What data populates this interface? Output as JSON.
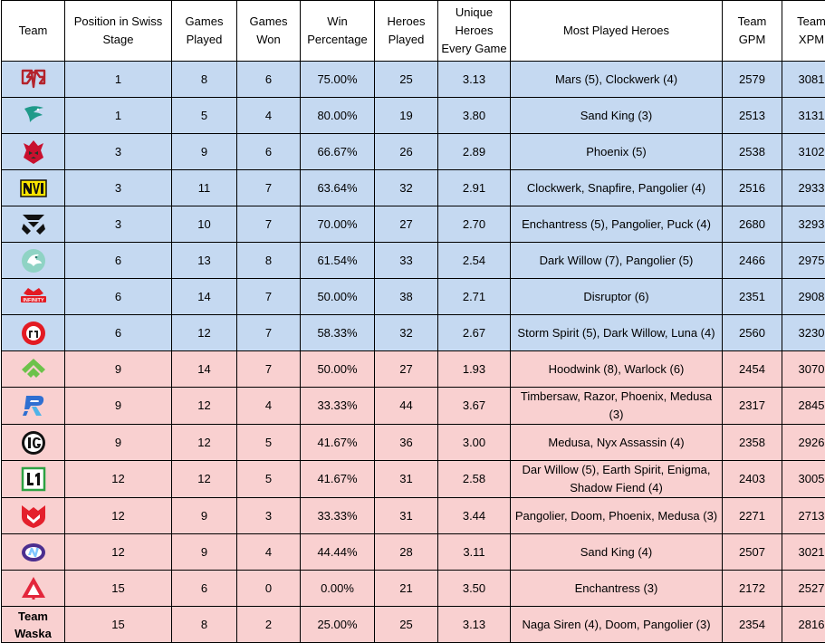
{
  "headers": {
    "team": "Team",
    "position": "Position in Swiss Stage",
    "games_played": "Games Played",
    "games_won": "Games Won",
    "win_pct": "Win Percentage",
    "heroes_played": "Heroes Played",
    "unique_heroes": "Unique Heroes Every Game",
    "most_played": "Most Played Heroes",
    "gpm": "Team GPM",
    "xpm": "Team XPM"
  },
  "rows": [
    {
      "logo_icon": "team-falcons-logo-icon",
      "team_text": "",
      "position": "1",
      "games_played": "8",
      "games_won": "6",
      "win_pct": "75.00%",
      "heroes_played": "25",
      "unique_heroes": "3.13",
      "most_played": "Mars (5), Clockwerk (4)",
      "gpm": "2579",
      "xpm": "3081"
    },
    {
      "logo_icon": "team-liquid-logo-icon",
      "team_text": "",
      "position": "1",
      "games_played": "5",
      "games_won": "4",
      "win_pct": "80.00%",
      "heroes_played": "19",
      "unique_heroes": "3.80",
      "most_played": "Sand King (3)",
      "gpm": "2513",
      "xpm": "3131"
    },
    {
      "logo_icon": "red-demon-logo-icon",
      "team_text": "",
      "position": "3",
      "games_played": "9",
      "games_won": "6",
      "win_pct": "66.67%",
      "heroes_played": "26",
      "unique_heroes": "2.89",
      "most_played": "Phoenix (5)",
      "gpm": "2538",
      "xpm": "3102"
    },
    {
      "logo_icon": "navi-logo-icon",
      "team_text": "",
      "position": "3",
      "games_played": "11",
      "games_won": "7",
      "win_pct": "63.64%",
      "heroes_played": "32",
      "unique_heroes": "2.91",
      "most_played": "Clockwerk, Snapfire, Pangolier (4)",
      "gpm": "2516",
      "xpm": "2933"
    },
    {
      "logo_icon": "tundra-logo-icon",
      "team_text": "",
      "position": "3",
      "games_played": "10",
      "games_won": "7",
      "win_pct": "70.00%",
      "heroes_played": "27",
      "unique_heroes": "2.70",
      "most_played": "Enchantress (5), Pangolier, Puck (4)",
      "gpm": "2680",
      "xpm": "3293"
    },
    {
      "logo_icon": "dragon-logo-icon",
      "team_text": "",
      "position": "6",
      "games_played": "13",
      "games_won": "8",
      "win_pct": "61.54%",
      "heroes_played": "33",
      "unique_heroes": "2.54",
      "most_played": "Dark Willow (7), Pangolier (5)",
      "gpm": "2466",
      "xpm": "2975"
    },
    {
      "logo_icon": "infinity-logo-icon",
      "team_text": "",
      "position": "6",
      "games_played": "14",
      "games_won": "7",
      "win_pct": "50.00%",
      "heroes_played": "38",
      "unique_heroes": "2.71",
      "most_played": "Disruptor (6)",
      "gpm": "2351",
      "xpm": "2908"
    },
    {
      "logo_icon": "red-circle-logo-icon",
      "team_text": "",
      "position": "6",
      "games_played": "12",
      "games_won": "7",
      "win_pct": "58.33%",
      "heroes_played": "32",
      "unique_heroes": "2.67",
      "most_played": "Storm Spirit (5), Dark Willow, Luna (4)",
      "gpm": "2560",
      "xpm": "3230"
    },
    {
      "logo_icon": "green-chevron-logo-icon",
      "team_text": "",
      "position": "9",
      "games_played": "14",
      "games_won": "7",
      "win_pct": "50.00%",
      "heroes_played": "27",
      "unique_heroes": "1.93",
      "most_played": "Hoodwink (8), Warlock (6)",
      "gpm": "2454",
      "xpm": "3070"
    },
    {
      "logo_icon": "blue-r-logo-icon",
      "team_text": "",
      "position": "9",
      "games_played": "12",
      "games_won": "4",
      "win_pct": "33.33%",
      "heroes_played": "44",
      "unique_heroes": "3.67",
      "most_played": "Timbersaw, Razor, Phoenix, Medusa (3)",
      "gpm": "2317",
      "xpm": "2845"
    },
    {
      "logo_icon": "ig-logo-icon",
      "team_text": "",
      "position": "9",
      "games_played": "12",
      "games_won": "5",
      "win_pct": "41.67%",
      "heroes_played": "36",
      "unique_heroes": "3.00",
      "most_played": "Medusa, Nyx Assassin (4)",
      "gpm": "2358",
      "xpm": "2926"
    },
    {
      "logo_icon": "l1-logo-icon",
      "team_text": "",
      "position": "12",
      "games_played": "12",
      "games_won": "5",
      "win_pct": "41.67%",
      "heroes_played": "31",
      "unique_heroes": "2.58",
      "most_played": "Dar Willow (5), Earth Spirit, Enigma, Shadow Fiend (4)",
      "gpm": "2403",
      "xpm": "3005"
    },
    {
      "logo_icon": "mouz-logo-icon",
      "team_text": "",
      "position": "12",
      "games_played": "9",
      "games_won": "3",
      "win_pct": "33.33%",
      "heroes_played": "31",
      "unique_heroes": "3.44",
      "most_played": "Pangolier, Doom, Phoenix, Medusa (3)",
      "gpm": "2271",
      "xpm": "2713"
    },
    {
      "logo_icon": "nigma-logo-icon",
      "team_text": "",
      "position": "12",
      "games_played": "9",
      "games_won": "4",
      "win_pct": "44.44%",
      "heroes_played": "28",
      "unique_heroes": "3.11",
      "most_played": "Sand King (4)",
      "gpm": "2507",
      "xpm": "3021"
    },
    {
      "logo_icon": "red-triangle-logo-icon",
      "team_text": "",
      "position": "15",
      "games_played": "6",
      "games_won": "0",
      "win_pct": "0.00%",
      "heroes_played": "21",
      "unique_heroes": "3.50",
      "most_played": "Enchantress (3)",
      "gpm": "2172",
      "xpm": "2527"
    },
    {
      "logo_icon": "",
      "team_text": "Team Waska",
      "position": "15",
      "games_played": "8",
      "games_won": "2",
      "win_pct": "25.00%",
      "heroes_played": "25",
      "unique_heroes": "3.13",
      "most_played": "Naga Siren (4), Doom, Pangolier (3)",
      "gpm": "2354",
      "xpm": "2816"
    }
  ],
  "colors": {
    "qualified_row": "#c5d9f1",
    "eliminated_row": "#f9d0d0",
    "border": "#000000"
  }
}
